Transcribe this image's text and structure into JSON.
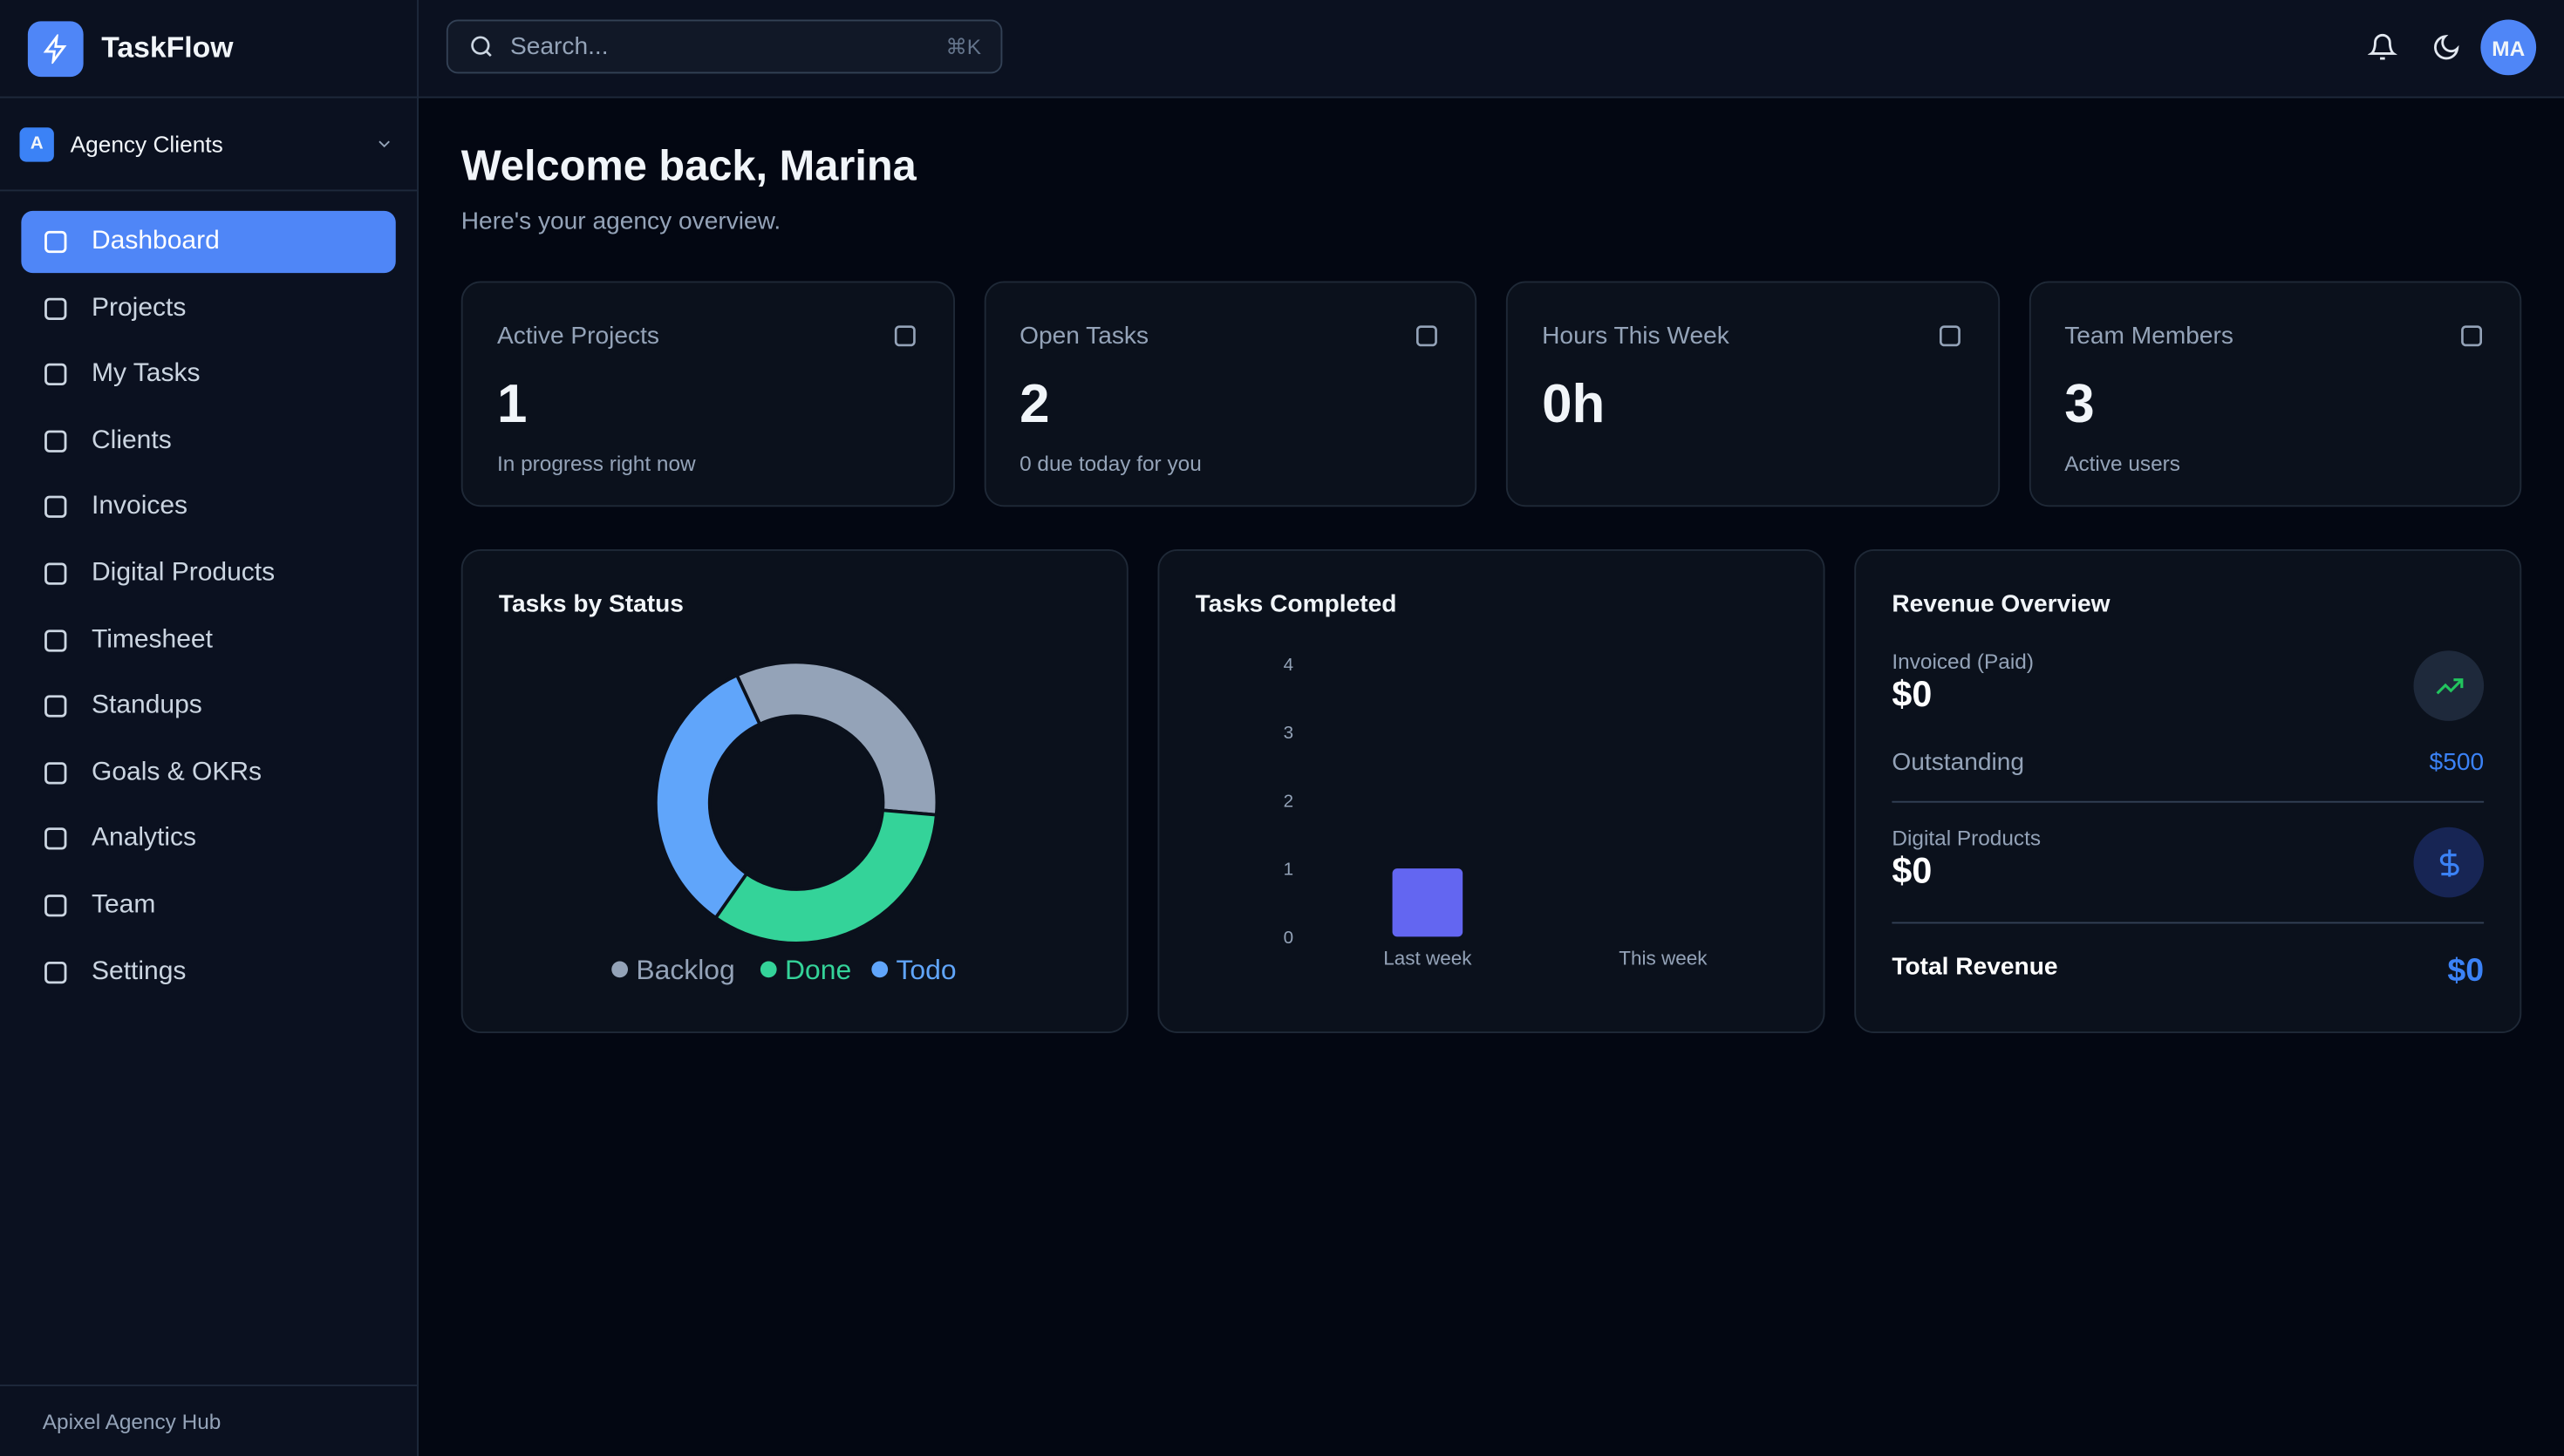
{
  "app": {
    "name": "TaskFlow",
    "workspace_initial": "A",
    "workspace": "Agency Clients",
    "nav": [
      "Dashboard",
      "Projects",
      "My Tasks",
      "Clients",
      "Invoices",
      "Digital Products",
      "Timesheet",
      "Standups",
      "Goals & OKRs",
      "Analytics",
      "Team",
      "Settings"
    ],
    "footer": "Apixel Agency Hub"
  },
  "header": {
    "search_placeholder": "Search...",
    "shortcut": "⌘K",
    "avatar": "MA"
  },
  "welcome": {
    "title": "Welcome back, Marina",
    "subtitle": "Here's your agency overview."
  },
  "stats": [
    {
      "label": "Active Projects",
      "value": 1,
      "note": "In progress right now"
    },
    {
      "label": "Open Tasks",
      "value": 2,
      "note": "0 due today for you"
    },
    {
      "label": "Hours This Week",
      "value": "0h"
    },
    {
      "label": "Team Members",
      "value": 3,
      "note": "Active users"
    }
  ],
  "chart_data": [
    {
      "type": "pie",
      "title": "Tasks by Status",
      "categories": [
        "Backlog",
        "Done",
        "Todo"
      ],
      "values": [
        1,
        1,
        1
      ],
      "colors": [
        "#94a3b8",
        "#34d399",
        "#60a5fa"
      ]
    },
    {
      "type": "bar",
      "title": "Tasks Completed",
      "categories": [
        "Last week",
        "This week"
      ],
      "values": [
        1,
        0
      ],
      "color": "#6366f1",
      "ylim": [
        0,
        4
      ],
      "yticks": [
        0,
        1,
        2,
        3,
        4
      ]
    }
  ],
  "revenue": {
    "title": "Revenue Overview",
    "invoiced_label": "Invoiced (Paid)",
    "invoiced": "$0",
    "outstanding_label": "Outstanding",
    "outstanding": "$500",
    "digital_label": "Digital Products",
    "digital": "$0",
    "total_label": "Total Revenue",
    "total": "$0"
  }
}
